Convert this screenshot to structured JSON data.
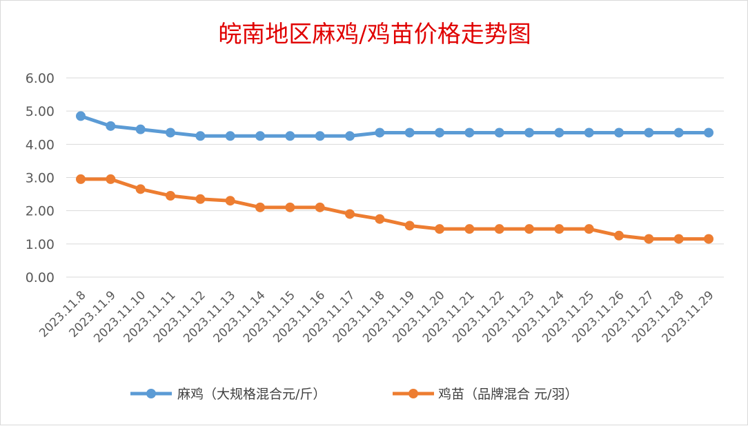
{
  "chart_data": {
    "type": "line",
    "title": "皖南地区麻鸡/鸡苗价格走势图",
    "xlabel": "",
    "ylabel": "",
    "ylim": [
      0,
      6
    ],
    "yticks": [
      "0.00",
      "1.00",
      "2.00",
      "3.00",
      "4.00",
      "5.00",
      "6.00"
    ],
    "grid": true,
    "legend_position": "bottom",
    "categories": [
      "2023.11.8",
      "2023.11.9",
      "2023.11.10",
      "2023.11.11",
      "2023.11.12",
      "2023.11.13",
      "2023.11.14",
      "2023.11.15",
      "2023.11.16",
      "2023.11.17",
      "2023.11.18",
      "2023.11.19",
      "2023.11.20",
      "2023.11.21",
      "2023.11.22",
      "2023.11.23",
      "2023.11.24",
      "2023.11.25",
      "2023.11.26",
      "2023.11.27",
      "2023.11.28",
      "2023.11.29"
    ],
    "series": [
      {
        "name": "麻鸡（大规格混合元/斤）",
        "color": "#5b9bd5",
        "values": [
          4.85,
          4.55,
          4.45,
          4.35,
          4.25,
          4.25,
          4.25,
          4.25,
          4.25,
          4.25,
          4.35,
          4.35,
          4.35,
          4.35,
          4.35,
          4.35,
          4.35,
          4.35,
          4.35,
          4.35,
          4.35,
          4.35
        ]
      },
      {
        "name": "鸡苗（品牌混合 元/羽）",
        "color": "#ed7d31",
        "values": [
          2.95,
          2.95,
          2.65,
          2.45,
          2.35,
          2.3,
          2.1,
          2.1,
          2.1,
          1.9,
          1.75,
          1.55,
          1.45,
          1.45,
          1.45,
          1.45,
          1.45,
          1.45,
          1.25,
          1.15,
          1.15,
          1.15
        ]
      }
    ]
  }
}
